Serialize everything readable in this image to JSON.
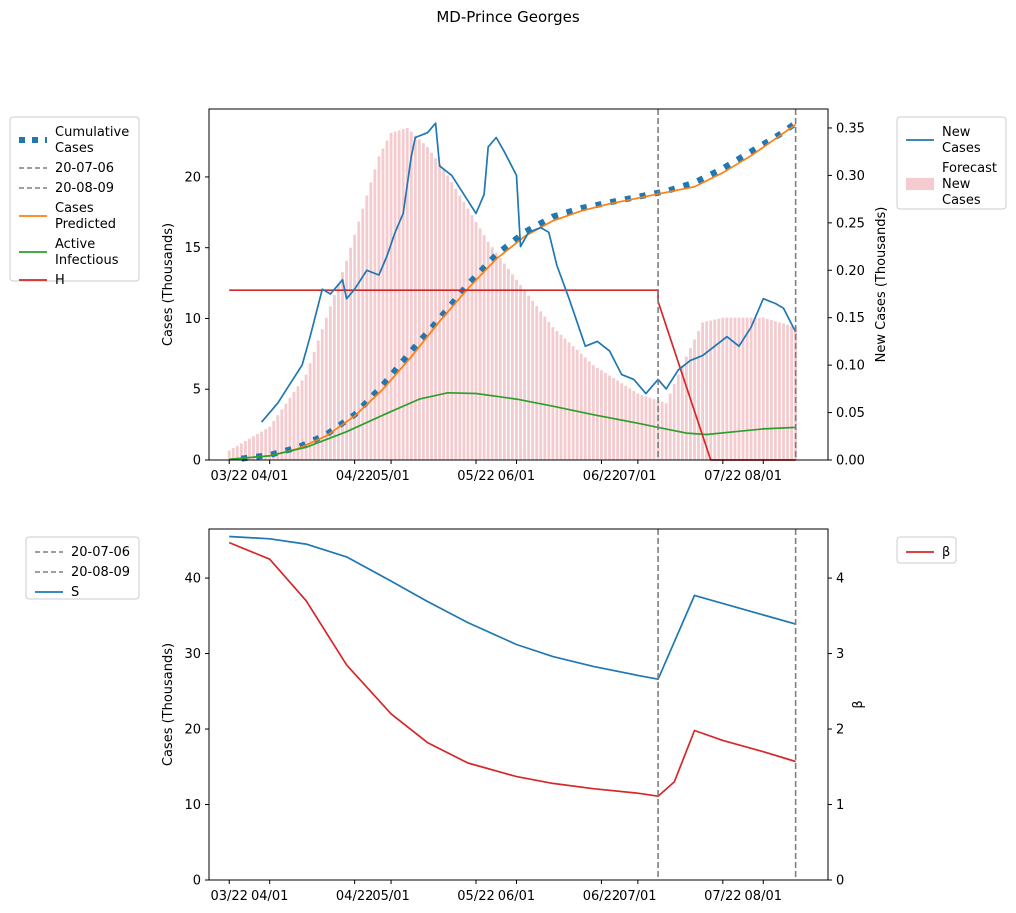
{
  "figure": {
    "title": "MD-Prince Georges"
  },
  "colors": {
    "blue": "#1f77b4",
    "orange": "#ff7f0e",
    "green": "#2ca02c",
    "red": "#d62728",
    "gray": "#7f7f7f",
    "forecast_bar": "#f4cccf"
  },
  "chart_data": [
    {
      "type": "line",
      "title": "",
      "xlabel": "",
      "ylabel": "Cases (Thousands)",
      "y2label": "New Cases (Thousands)",
      "x_tick_labels": [
        "03/22",
        "04/01",
        "04/22",
        "05/01",
        "05/22",
        "06/01",
        "06/22",
        "07/01",
        "07/22",
        "08/01"
      ],
      "x_tick_dates": [
        "2020-03-22",
        "2020-04-01",
        "2020-04-22",
        "2020-05-01",
        "2020-05-22",
        "2020-06-01",
        "2020-06-22",
        "2020-07-01",
        "2020-07-22",
        "2020-08-01"
      ],
      "xlim": [
        "2020-03-17",
        "2020-08-17"
      ],
      "ylim": [
        0,
        24.8
      ],
      "y_ticks": [
        "0",
        "5",
        "10",
        "15",
        "20"
      ],
      "y2lim": [
        0,
        0.37
      ],
      "y2_ticks": [
        "0.00",
        "0.05",
        "0.10",
        "0.15",
        "0.20",
        "0.25",
        "0.30",
        "0.35"
      ],
      "vlines": [
        {
          "label": "20-07-06",
          "date": "2020-07-06"
        },
        {
          "label": "20-08-09",
          "date": "2020-08-09"
        }
      ],
      "legend_left": [
        "Cumulative\nCases",
        "20-07-06",
        "20-08-09",
        "Cases\nPredicted",
        "Active\nInfectious",
        "H"
      ],
      "legend_right": [
        "New\nCases",
        "Forecast\nNew\nCases"
      ],
      "series": [
        {
          "name": "Cumulative\nCases",
          "axis": "left",
          "style": "dotted",
          "points": [
            [
              "2020-03-25",
              0.1
            ],
            [
              "2020-04-01",
              0.35
            ],
            [
              "2020-04-08",
              0.9
            ],
            [
              "2020-04-15",
              1.8
            ],
            [
              "2020-04-22",
              3.2
            ],
            [
              "2020-04-29",
              5.3
            ],
            [
              "2020-05-06",
              7.7
            ],
            [
              "2020-05-13",
              10.0
            ],
            [
              "2020-05-20",
              12.4
            ],
            [
              "2020-05-27",
              14.5
            ],
            [
              "2020-06-03",
              16.1
            ],
            [
              "2020-06-10",
              17.2
            ],
            [
              "2020-06-17",
              17.8
            ],
            [
              "2020-06-24",
              18.2
            ],
            [
              "2020-07-01",
              18.6
            ],
            [
              "2020-07-08",
              19.0
            ],
            [
              "2020-07-15",
              19.6
            ],
            [
              "2020-07-22",
              20.6
            ],
            [
              "2020-07-29",
              21.8
            ],
            [
              "2020-08-05",
              23.0
            ],
            [
              "2020-08-09",
              23.8
            ]
          ]
        },
        {
          "name": "Cases\nPredicted",
          "axis": "left",
          "style": "solid",
          "points": [
            [
              "2020-03-22",
              0.05
            ],
            [
              "2020-04-01",
              0.3
            ],
            [
              "2020-04-08",
              0.8
            ],
            [
              "2020-04-15",
              1.7
            ],
            [
              "2020-04-22",
              3.1
            ],
            [
              "2020-04-29",
              5.0
            ],
            [
              "2020-05-06",
              7.3
            ],
            [
              "2020-05-13",
              9.8
            ],
            [
              "2020-05-20",
              12.1
            ],
            [
              "2020-05-27",
              14.2
            ],
            [
              "2020-06-03",
              15.8
            ],
            [
              "2020-06-10",
              16.9
            ],
            [
              "2020-06-17",
              17.6
            ],
            [
              "2020-06-24",
              18.1
            ],
            [
              "2020-07-01",
              18.5
            ],
            [
              "2020-07-06",
              18.8
            ],
            [
              "2020-07-15",
              19.3
            ],
            [
              "2020-07-22",
              20.3
            ],
            [
              "2020-07-29",
              21.5
            ],
            [
              "2020-08-05",
              22.9
            ],
            [
              "2020-08-09",
              23.7
            ]
          ]
        },
        {
          "name": "Active\nInfectious",
          "axis": "left",
          "style": "solid",
          "points": [
            [
              "2020-03-22",
              0.05
            ],
            [
              "2020-04-01",
              0.3
            ],
            [
              "2020-04-10",
              0.9
            ],
            [
              "2020-04-20",
              2.0
            ],
            [
              "2020-04-30",
              3.3
            ],
            [
              "2020-05-08",
              4.3
            ],
            [
              "2020-05-15",
              4.75
            ],
            [
              "2020-05-22",
              4.7
            ],
            [
              "2020-06-01",
              4.3
            ],
            [
              "2020-06-10",
              3.8
            ],
            [
              "2020-06-20",
              3.2
            ],
            [
              "2020-07-01",
              2.6
            ],
            [
              "2020-07-06",
              2.3
            ],
            [
              "2020-07-13",
              1.9
            ],
            [
              "2020-07-18",
              1.8
            ],
            [
              "2020-07-25",
              2.0
            ],
            [
              "2020-08-01",
              2.2
            ],
            [
              "2020-08-09",
              2.3
            ]
          ]
        },
        {
          "name": "H",
          "axis": "left",
          "style": "solid",
          "points": [
            [
              "2020-03-22",
              12.0
            ],
            [
              "2020-07-06",
              12.0
            ],
            [
              "2020-07-06",
              11.2
            ],
            [
              "2020-07-19",
              0.0
            ],
            [
              "2020-08-09",
              0.0
            ]
          ]
        },
        {
          "name": "New\nCases",
          "axis": "right",
          "style": "solid",
          "points": [
            [
              "2020-03-30",
              0.04
            ],
            [
              "2020-04-03",
              0.06
            ],
            [
              "2020-04-06",
              0.08
            ],
            [
              "2020-04-09",
              0.1
            ],
            [
              "2020-04-11",
              0.13
            ],
            [
              "2020-04-14",
              0.18
            ],
            [
              "2020-04-16",
              0.175
            ],
            [
              "2020-04-19",
              0.19
            ],
            [
              "2020-04-20",
              0.17
            ],
            [
              "2020-04-22",
              0.18
            ],
            [
              "2020-04-25",
              0.2
            ],
            [
              "2020-04-28",
              0.195
            ],
            [
              "2020-04-30",
              0.215
            ],
            [
              "2020-05-02",
              0.24
            ],
            [
              "2020-05-04",
              0.26
            ],
            [
              "2020-05-06",
              0.32
            ],
            [
              "2020-05-07",
              0.34
            ],
            [
              "2020-05-10",
              0.345
            ],
            [
              "2020-05-12",
              0.355
            ],
            [
              "2020-05-13",
              0.31
            ],
            [
              "2020-05-16",
              0.3
            ],
            [
              "2020-05-19",
              0.28
            ],
            [
              "2020-05-22",
              0.26
            ],
            [
              "2020-05-24",
              0.28
            ],
            [
              "2020-05-25",
              0.33
            ],
            [
              "2020-05-27",
              0.34
            ],
            [
              "2020-05-29",
              0.325
            ],
            [
              "2020-06-01",
              0.3
            ],
            [
              "2020-06-02",
              0.225
            ],
            [
              "2020-06-04",
              0.24
            ],
            [
              "2020-06-07",
              0.245
            ],
            [
              "2020-06-09",
              0.24
            ],
            [
              "2020-06-11",
              0.205
            ],
            [
              "2020-06-14",
              0.17
            ],
            [
              "2020-06-18",
              0.12
            ],
            [
              "2020-06-21",
              0.125
            ],
            [
              "2020-06-24",
              0.115
            ],
            [
              "2020-06-27",
              0.09
            ],
            [
              "2020-06-30",
              0.085
            ],
            [
              "2020-07-03",
              0.07
            ],
            [
              "2020-07-06",
              0.085
            ],
            [
              "2020-07-08",
              0.075
            ],
            [
              "2020-07-11",
              0.095
            ],
            [
              "2020-07-14",
              0.105
            ],
            [
              "2020-07-17",
              0.11
            ],
            [
              "2020-07-20",
              0.12
            ],
            [
              "2020-07-23",
              0.13
            ],
            [
              "2020-07-26",
              0.12
            ],
            [
              "2020-07-29",
              0.14
            ],
            [
              "2020-08-01",
              0.17
            ],
            [
              "2020-08-04",
              0.165
            ],
            [
              "2020-08-06",
              0.16
            ],
            [
              "2020-08-09",
              0.135
            ]
          ]
        },
        {
          "name": "Forecast\nNew\nCases",
          "axis": "right",
          "style": "bars",
          "points": [
            [
              "2020-03-22",
              0.01
            ],
            [
              "2020-04-01",
              0.035
            ],
            [
              "2020-04-10",
              0.09
            ],
            [
              "2020-04-20",
              0.21
            ],
            [
              "2020-04-28",
              0.32
            ],
            [
              "2020-05-01",
              0.345
            ],
            [
              "2020-05-05",
              0.35
            ],
            [
              "2020-05-10",
              0.33
            ],
            [
              "2020-05-15",
              0.3
            ],
            [
              "2020-05-20",
              0.265
            ],
            [
              "2020-05-25",
              0.23
            ],
            [
              "2020-06-01",
              0.19
            ],
            [
              "2020-06-10",
              0.14
            ],
            [
              "2020-06-20",
              0.1
            ],
            [
              "2020-07-01",
              0.07
            ],
            [
              "2020-07-08",
              0.06
            ],
            [
              "2020-07-12",
              0.1
            ],
            [
              "2020-07-17",
              0.145
            ],
            [
              "2020-07-22",
              0.15
            ],
            [
              "2020-08-01",
              0.15
            ],
            [
              "2020-08-09",
              0.14
            ]
          ]
        }
      ]
    },
    {
      "type": "line",
      "title": "",
      "xlabel": "",
      "ylabel": "Cases (Thousands)",
      "y2label": "β",
      "x_tick_labels": [
        "03/22",
        "04/01",
        "04/22",
        "05/01",
        "05/22",
        "06/01",
        "06/22",
        "07/01",
        "07/22",
        "08/01"
      ],
      "ylim": [
        0,
        46.5
      ],
      "y_ticks": [
        "0",
        "10",
        "20",
        "30",
        "40"
      ],
      "y2lim": [
        0,
        4.65
      ],
      "y2_ticks": [
        "0",
        "1",
        "2",
        "3",
        "4"
      ],
      "vlines": [
        {
          "label": "20-07-06",
          "date": "2020-07-06"
        },
        {
          "label": "20-08-09",
          "date": "2020-08-09"
        }
      ],
      "legend_left": [
        "20-07-06",
        "20-08-09",
        "S"
      ],
      "legend_right": [
        "β"
      ],
      "series": [
        {
          "name": "S",
          "axis": "left",
          "style": "solid",
          "points": [
            [
              "2020-03-22",
              45.5
            ],
            [
              "2020-04-01",
              45.2
            ],
            [
              "2020-04-10",
              44.5
            ],
            [
              "2020-04-20",
              42.8
            ],
            [
              "2020-05-01",
              39.6
            ],
            [
              "2020-05-10",
              36.9
            ],
            [
              "2020-05-20",
              34.1
            ],
            [
              "2020-06-01",
              31.2
            ],
            [
              "2020-06-10",
              29.6
            ],
            [
              "2020-06-20",
              28.3
            ],
            [
              "2020-07-01",
              27.1
            ],
            [
              "2020-07-06",
              26.6
            ],
            [
              "2020-07-15",
              37.7
            ],
            [
              "2020-08-09",
              33.9
            ]
          ]
        },
        {
          "name": "β",
          "axis": "right",
          "style": "solid",
          "points": [
            [
              "2020-03-22",
              4.47
            ],
            [
              "2020-04-01",
              4.25
            ],
            [
              "2020-04-10",
              3.7
            ],
            [
              "2020-04-20",
              2.85
            ],
            [
              "2020-05-01",
              2.2
            ],
            [
              "2020-05-10",
              1.82
            ],
            [
              "2020-05-20",
              1.55
            ],
            [
              "2020-06-01",
              1.37
            ],
            [
              "2020-06-10",
              1.28
            ],
            [
              "2020-06-20",
              1.21
            ],
            [
              "2020-07-01",
              1.15
            ],
            [
              "2020-07-06",
              1.11
            ],
            [
              "2020-07-10",
              1.3
            ],
            [
              "2020-07-15",
              1.98
            ],
            [
              "2020-07-22",
              1.85
            ],
            [
              "2020-08-01",
              1.7
            ],
            [
              "2020-08-09",
              1.57
            ]
          ]
        }
      ]
    }
  ]
}
